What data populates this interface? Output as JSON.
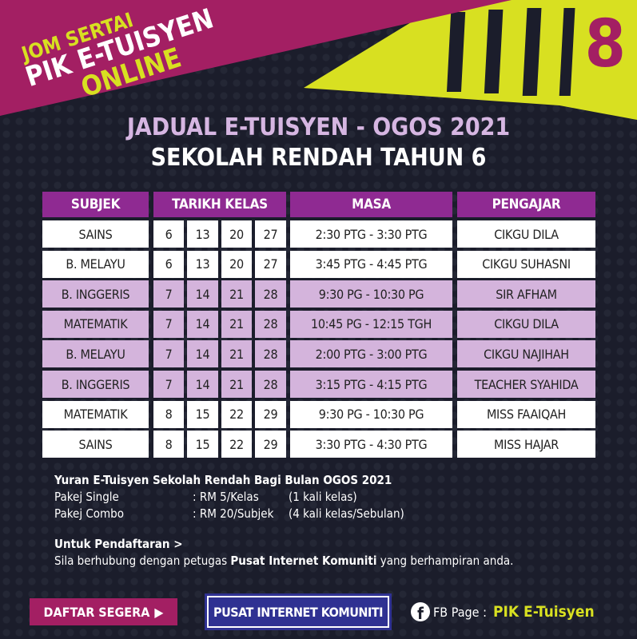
{
  "banner": {
    "line1": "JOM SERTAI",
    "line2": "PIK E-TUISYEN",
    "line3": "ONLINE",
    "number": "8"
  },
  "title": {
    "line1": "JADUAL E-TUISYEN - OGOS 2021",
    "line2": "SEKOLAH RENDAH TAHUN 6"
  },
  "table": {
    "headers": {
      "subjek": "SUBJEK",
      "tarikh": "TARIKH KELAS",
      "masa": "MASA",
      "pengajar": "PENGAJAR"
    },
    "rows": [
      {
        "subjek": "SAINS",
        "dates": [
          "6",
          "13",
          "20",
          "27"
        ],
        "masa": "2:30 PTG - 3:30 PTG",
        "pengajar": "CIKGU DILA"
      },
      {
        "subjek": "B. MELAYU",
        "dates": [
          "6",
          "13",
          "20",
          "27"
        ],
        "masa": "3:45 PTG - 4:45 PTG",
        "pengajar": "CIKGU SUHASNI"
      },
      {
        "subjek": "B. INGGERIS",
        "dates": [
          "7",
          "14",
          "21",
          "28"
        ],
        "masa": "9:30 PG - 10:30 PG",
        "pengajar": "SIR AFHAM"
      },
      {
        "subjek": "MATEMATIK",
        "dates": [
          "7",
          "14",
          "21",
          "28"
        ],
        "masa": "10:45 PG - 12:15 TGH",
        "pengajar": "CIKGU DILA"
      },
      {
        "subjek": "B. MELAYU",
        "dates": [
          "7",
          "14",
          "21",
          "28"
        ],
        "masa": "2:00 PTG - 3:00 PTG",
        "pengajar": "CIKGU NAJIHAH"
      },
      {
        "subjek": "B. INGGERIS",
        "dates": [
          "7",
          "14",
          "21",
          "28"
        ],
        "masa": "3:15 PTG - 4:15 PTG",
        "pengajar": "TEACHER SYAHIDA"
      },
      {
        "subjek": "MATEMATIK",
        "dates": [
          "8",
          "15",
          "22",
          "29"
        ],
        "masa": "9:30 PG - 10:30 PG",
        "pengajar": "MISS FAAIQAH"
      },
      {
        "subjek": "SAINS",
        "dates": [
          "8",
          "15",
          "22",
          "29"
        ],
        "masa": "3:30 PTG - 4:30 PTG",
        "pengajar": "MISS HAJAR"
      }
    ]
  },
  "fees": {
    "heading": "Yuran E-Tuisyen Sekolah Rendah Bagi Bulan OGOS 2021",
    "single_label": "Pakej Single",
    "single_price": ": RM 5/Kelas",
    "single_note": "(1 kali kelas)",
    "combo_label": "Pakej Combo",
    "combo_price": ": RM 20/Subjek",
    "combo_note": "(4 kali kelas/Sebulan)"
  },
  "registration": {
    "heading": "Untuk Pendaftaran >",
    "text_before": "Sila berhubung dengan petugas ",
    "text_bold": "Pusat Internet Komuniti",
    "text_after": " yang berhampiran anda."
  },
  "footer": {
    "daftar_button": "DAFTAR SEGERA",
    "logo_text": "PUSAT INTERNET KOMUNITI",
    "fb_label": "FB Page :",
    "fb_name": "PIK E-Tuisyen"
  },
  "colors": {
    "background": "#1b1d2b",
    "magenta": "#a31f63",
    "lime": "#d8e021",
    "header_purple": "#8f2a92",
    "row_lilac": "#d4b4dc"
  }
}
